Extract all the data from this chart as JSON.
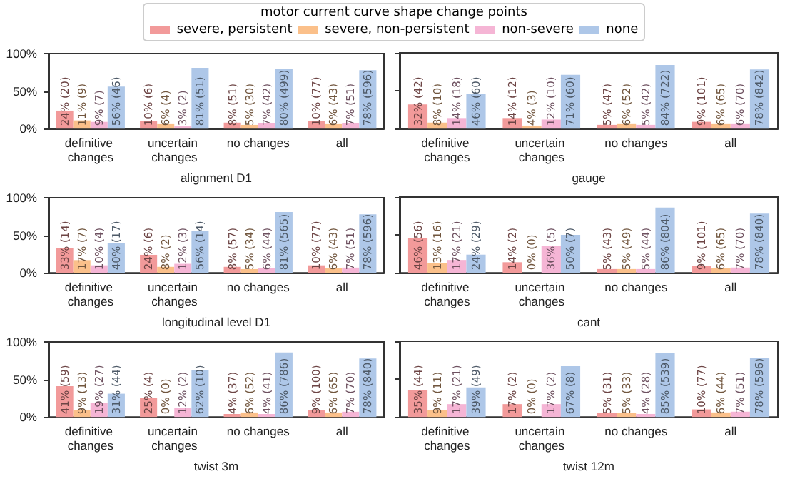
{
  "chart_data": [
    {
      "type": "bar",
      "legend": "top",
      "legend_title": "motor current curve shape change points",
      "xlabel": "alignment D1",
      "categories": [
        "definitive changes",
        "uncertain changes",
        "no changes",
        "all"
      ],
      "ylim": [
        0,
        100
      ],
      "yticks": [
        {
          "value": 0,
          "label": "0%"
        },
        {
          "value": 50,
          "label": "50%"
        },
        {
          "value": 100,
          "label": "100%"
        }
      ],
      "series": [
        {
          "name": "severe, persistent",
          "color": "#f29a9a",
          "values": [
            24,
            10,
            8,
            10
          ],
          "value_labels": [
            "24% (20)",
            "10% (6)",
            "8% (51)",
            "10% (77)"
          ]
        },
        {
          "name": "severe, non-persistent",
          "color": "#fbc08a",
          "values": [
            11,
            6,
            5,
            6
          ],
          "value_labels": [
            "11% (9)",
            "6% (4)",
            "5% (30)",
            "6% (43)"
          ]
        },
        {
          "name": "non-severe",
          "color": "#f5b5d5",
          "values": [
            9,
            3,
            7,
            7
          ],
          "value_labels": [
            "9% (7)",
            "3% (2)",
            "7% (42)",
            "7% (51)"
          ]
        },
        {
          "name": "none",
          "color": "#aec7e8",
          "values": [
            56,
            81,
            80,
            78
          ],
          "value_labels": [
            "56% (46)",
            "81% (51)",
            "80% (499)",
            "78% (596)"
          ]
        }
      ]
    },
    {
      "type": "bar",
      "xlabel": "gauge",
      "tick_labels": "x",
      "categories": [
        "definitive changes",
        "uncertain changes",
        "no changes",
        "all"
      ],
      "ylim": [
        0,
        100
      ],
      "yticks": [
        {
          "value": 0,
          "label": null
        },
        {
          "value": 50,
          "label": null
        },
        {
          "value": 100,
          "label": null
        }
      ],
      "series": [
        {
          "color": "#f29a9a",
          "values": [
            32,
            14,
            5,
            9
          ],
          "value_labels": [
            "32% (42)",
            "14% (12)",
            "5% (47)",
            "9% (101)"
          ]
        },
        {
          "color": "#fbc08a",
          "values": [
            8,
            4,
            6,
            6
          ],
          "value_labels": [
            "8% (10)",
            "4% (3)",
            "6% (52)",
            "6% (65)"
          ]
        },
        {
          "color": "#f5b5d5",
          "values": [
            14,
            12,
            5,
            6
          ],
          "value_labels": [
            "14% (18)",
            "12% (10)",
            "5% (42)",
            "6% (70)"
          ]
        },
        {
          "color": "#aec7e8",
          "values": [
            46,
            71,
            84,
            78
          ],
          "value_labels": [
            "46% (60)",
            "71% (60)",
            "84% (722)",
            "78% (842)"
          ]
        }
      ]
    },
    {
      "type": "bar",
      "xlabel": "longitudinal level D1",
      "categories": [
        "definitive changes",
        "uncertain changes",
        "no changes",
        "all"
      ],
      "ylim": [
        0,
        100
      ],
      "yticks": [
        {
          "value": 0,
          "label": "0%"
        },
        {
          "value": 50,
          "label": "50%"
        },
        {
          "value": 100,
          "label": "100%"
        }
      ],
      "series": [
        {
          "color": "#f29a9a",
          "values": [
            33,
            24,
            8,
            10
          ],
          "value_labels": [
            "33% (14)",
            "24% (6)",
            "8% (57)",
            "10% (77)"
          ]
        },
        {
          "color": "#fbc08a",
          "values": [
            17,
            8,
            5,
            6
          ],
          "value_labels": [
            "17% (7)",
            "8% (2)",
            "5% (34)",
            "6% (43)"
          ]
        },
        {
          "color": "#f5b5d5",
          "values": [
            10,
            12,
            6,
            7
          ],
          "value_labels": [
            "10% (4)",
            "12% (3)",
            "6% (44)",
            "7% (51)"
          ]
        },
        {
          "color": "#aec7e8",
          "values": [
            40,
            56,
            81,
            78
          ],
          "value_labels": [
            "40% (17)",
            "56% (14)",
            "81% (565)",
            "78% (596)"
          ]
        }
      ]
    },
    {
      "type": "bar",
      "xlabel": "cant",
      "tick_labels": "x",
      "categories": [
        "definitive changes",
        "uncertain changes",
        "no changes",
        "all"
      ],
      "ylim": [
        0,
        100
      ],
      "yticks": [
        {
          "value": 0,
          "label": null
        },
        {
          "value": 50,
          "label": null
        },
        {
          "value": 100,
          "label": null
        }
      ],
      "series": [
        {
          "color": "#f29a9a",
          "values": [
            46,
            14,
            5,
            9
          ],
          "value_labels": [
            "46% (56)",
            "14% (2)",
            "5% (43)",
            "9% (101)"
          ]
        },
        {
          "color": "#fbc08a",
          "values": [
            13,
            0,
            5,
            6
          ],
          "value_labels": [
            "13% (16)",
            "0% (0)",
            "5% (49)",
            "6% (65)"
          ]
        },
        {
          "color": "#f5b5d5",
          "values": [
            17,
            36,
            5,
            7
          ],
          "value_labels": [
            "17% (21)",
            "36% (5)",
            "5% (44)",
            "7% (70)"
          ]
        },
        {
          "color": "#aec7e8",
          "values": [
            24,
            50,
            86,
            78
          ],
          "value_labels": [
            "24% (29)",
            "50% (7)",
            "86% (804)",
            "78% (840)"
          ]
        }
      ]
    },
    {
      "type": "bar",
      "xlabel": "twist 3m",
      "categories": [
        "definitive changes",
        "uncertain changes",
        "no changes",
        "all"
      ],
      "ylim": [
        0,
        100
      ],
      "yticks": [
        {
          "value": 0,
          "label": "0%"
        },
        {
          "value": 50,
          "label": "50%"
        },
        {
          "value": 100,
          "label": "100%"
        }
      ],
      "series": [
        {
          "color": "#f29a9a",
          "values": [
            41,
            25,
            4,
            9
          ],
          "value_labels": [
            "41% (59)",
            "25% (4)",
            "4% (37)",
            "9% (100)"
          ]
        },
        {
          "color": "#fbc08a",
          "values": [
            9,
            0,
            6,
            6
          ],
          "value_labels": [
            "9% (13)",
            "0% (0)",
            "6% (52)",
            "6% (65)"
          ]
        },
        {
          "color": "#f5b5d5",
          "values": [
            19,
            12,
            4,
            7
          ],
          "value_labels": [
            "19% (27)",
            "12% (2)",
            "4% (41)",
            "7% (70)"
          ]
        },
        {
          "color": "#aec7e8",
          "values": [
            31,
            62,
            86,
            78
          ],
          "value_labels": [
            "31% (44)",
            "62% (10)",
            "86% (786)",
            "78% (840)"
          ]
        }
      ]
    },
    {
      "type": "bar",
      "xlabel": "twist 12m",
      "tick_labels": "x",
      "categories": [
        "definitive changes",
        "uncertain changes",
        "no changes",
        "all"
      ],
      "ylim": [
        0,
        100
      ],
      "yticks": [
        {
          "value": 0,
          "label": null
        },
        {
          "value": 50,
          "label": null
        },
        {
          "value": 100,
          "label": null
        }
      ],
      "series": [
        {
          "color": "#f29a9a",
          "values": [
            35,
            17,
            5,
            10
          ],
          "value_labels": [
            "35% (44)",
            "17% (2)",
            "5% (31)",
            "10% (77)"
          ]
        },
        {
          "color": "#fbc08a",
          "values": [
            9,
            0,
            5,
            6
          ],
          "value_labels": [
            "9% (11)",
            "0% (0)",
            "5% (33)",
            "6% (44)"
          ]
        },
        {
          "color": "#f5b5d5",
          "values": [
            17,
            17,
            4,
            7
          ],
          "value_labels": [
            "17% (21)",
            "17% (2)",
            "4% (28)",
            "7% (51)"
          ]
        },
        {
          "color": "#aec7e8",
          "values": [
            39,
            67,
            85,
            78
          ],
          "value_labels": [
            "39% (49)",
            "67% (8)",
            "85% (539)",
            "78% (596)"
          ]
        }
      ]
    }
  ]
}
